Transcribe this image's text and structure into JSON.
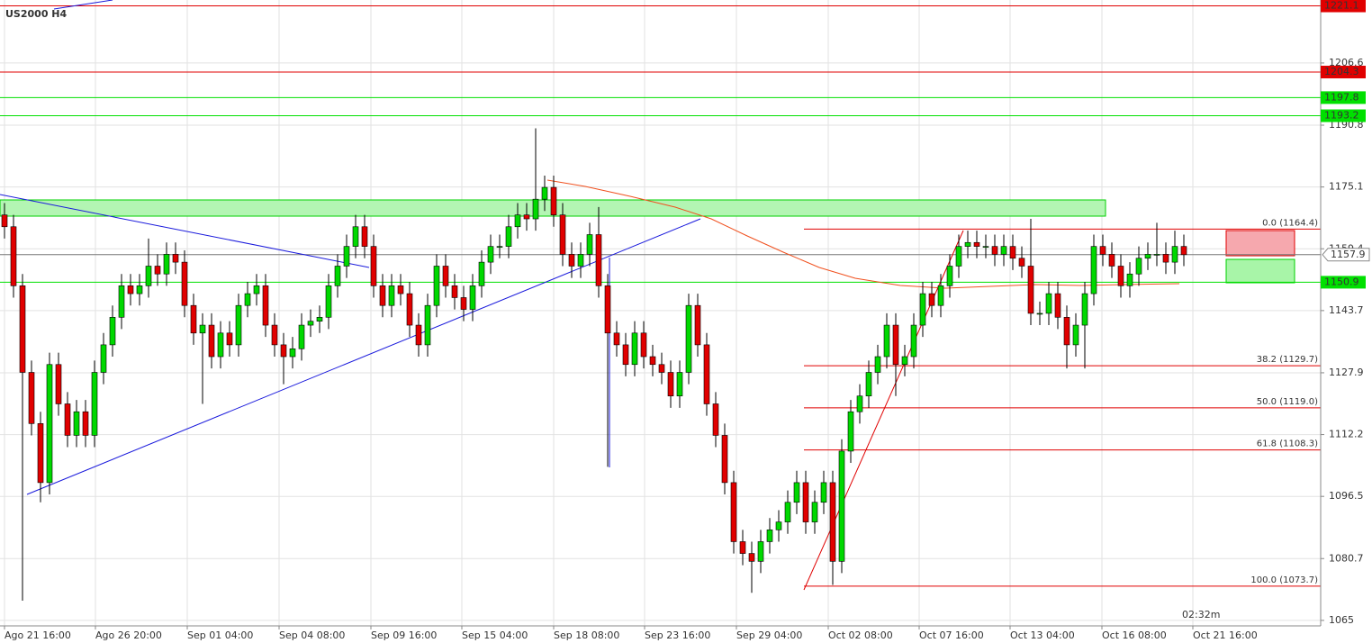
{
  "chart_data": {
    "type": "candlestick",
    "title": "US2000 H4",
    "timer": "02:32m",
    "xlim": [
      -0.5,
      146.2
    ],
    "xticks": [
      {
        "value": 0,
        "label": "Ago 21 16:00"
      },
      {
        "value": 10.1,
        "label": "Ago 26 20:00"
      },
      {
        "value": 20.3,
        "label": "Sep 01 04:00"
      },
      {
        "value": 30.5,
        "label": "Sep 04 08:00"
      },
      {
        "value": 40.7,
        "label": "Sep 09 16:00"
      },
      {
        "value": 50.8,
        "label": "Sep 15 04:00"
      },
      {
        "value": 61,
        "label": "Sep 18 08:00"
      },
      {
        "value": 71.1,
        "label": "Sep 23 16:00"
      },
      {
        "value": 81.3,
        "label": "Sep 29 04:00"
      },
      {
        "value": 91.5,
        "label": "Oct 02 08:00"
      },
      {
        "value": 101.6,
        "label": "Oct 07 16:00"
      },
      {
        "value": 111.7,
        "label": "Oct 13 04:00"
      },
      {
        "value": 121.9,
        "label": "Oct 16 08:00"
      },
      {
        "value": 132,
        "label": "Oct 21 16:00"
      }
    ],
    "ylim": [
      1063.6,
      1222.6
    ],
    "yticks": [
      1206.6,
      1190.8,
      1175.1,
      1159.4,
      1143.7,
      1127.9,
      1112.2,
      1096.5,
      1080.7,
      1065.0
    ],
    "grid": true,
    "up_color": "#00d800",
    "down_color": "#e00000",
    "open": [
      1168,
      1165,
      1150,
      1128,
      1115,
      1100,
      1130,
      1120,
      1112,
      1118,
      1112,
      1128,
      1135,
      1142,
      1150,
      1148,
      1150,
      1155,
      1153,
      1158,
      1156,
      1145,
      1138,
      1140,
      1132,
      1138,
      1135,
      1145,
      1148,
      1150,
      1140,
      1135,
      1132,
      1134,
      1140,
      1141,
      1142,
      1150,
      1155,
      1160,
      1165,
      1160,
      1150,
      1145,
      1150,
      1148,
      1140,
      1135,
      1145,
      1155,
      1150,
      1147,
      1144,
      1150,
      1156,
      1160,
      1160,
      1165,
      1168,
      1167,
      1172,
      1175,
      1168,
      1158,
      1155,
      1158,
      1163,
      1150,
      1138,
      1135,
      1130,
      1138,
      1132,
      1130,
      1128,
      1122,
      1128,
      1145,
      1135,
      1120,
      1112,
      1100,
      1085,
      1082,
      1080,
      1085,
      1088,
      1090,
      1095,
      1100,
      1090,
      1095,
      1100,
      1080,
      1108,
      1118,
      1122,
      1128,
      1132,
      1140,
      1130,
      1132,
      1140,
      1148,
      1145,
      1150,
      1155,
      1160,
      1161,
      1160,
      1160,
      1158,
      1160,
      1157,
      1155,
      1143,
      1143,
      1148,
      1142,
      1135,
      1140,
      1148,
      1160,
      1158,
      1155,
      1150,
      1153,
      1157,
      1158,
      1158,
      1156,
      1160
    ],
    "high": [
      1171,
      1168,
      1153,
      1131,
      1118,
      1133,
      1133,
      1123,
      1121,
      1121,
      1131,
      1138,
      1145,
      1153,
      1153,
      1153,
      1162,
      1158,
      1161,
      1161,
      1159,
      1148,
      1143,
      1143,
      1141,
      1141,
      1148,
      1151,
      1153,
      1153,
      1143,
      1138,
      1137,
      1143,
      1144,
      1145,
      1153,
      1158,
      1163,
      1168,
      1168,
      1163,
      1153,
      1153,
      1153,
      1151,
      1143,
      1148,
      1158,
      1158,
      1153,
      1150,
      1153,
      1159,
      1163,
      1163,
      1168,
      1171,
      1171,
      1190,
      1178,
      1178,
      1171,
      1161,
      1161,
      1166,
      1170,
      1153,
      1141,
      1138,
      1141,
      1141,
      1135,
      1133,
      1131,
      1131,
      1148,
      1148,
      1138,
      1123,
      1115,
      1103,
      1088,
      1085,
      1088,
      1091,
      1093,
      1098,
      1103,
      1103,
      1098,
      1103,
      1103,
      1111,
      1121,
      1125,
      1131,
      1135,
      1143,
      1143,
      1135,
      1143,
      1151,
      1151,
      1153,
      1158,
      1163,
      1164,
      1164,
      1163,
      1163,
      1163,
      1163,
      1160,
      1167,
      1146,
      1151,
      1151,
      1145,
      1143,
      1151,
      1163,
      1163,
      1161,
      1158,
      1156,
      1160,
      1161,
      1166,
      1161,
      1164,
      1163
    ],
    "low": [
      1162,
      1147,
      1070,
      1112,
      1095,
      1097,
      1117,
      1109,
      1109,
      1109,
      1109,
      1125,
      1132,
      1139,
      1145,
      1145,
      1147,
      1150,
      1150,
      1153,
      1142,
      1135,
      1120,
      1129,
      1129,
      1132,
      1132,
      1142,
      1145,
      1137,
      1132,
      1125,
      1129,
      1131,
      1137,
      1138,
      1139,
      1147,
      1152,
      1157,
      1157,
      1147,
      1142,
      1142,
      1145,
      1137,
      1132,
      1132,
      1142,
      1147,
      1144,
      1141,
      1141,
      1147,
      1153,
      1157,
      1157,
      1162,
      1164,
      1164,
      1169,
      1165,
      1155,
      1152,
      1152,
      1155,
      1147,
      1104,
      1132,
      1127,
      1127,
      1129,
      1127,
      1125,
      1119,
      1119,
      1125,
      1132,
      1117,
      1109,
      1097,
      1082,
      1079,
      1072,
      1077,
      1082,
      1085,
      1087,
      1092,
      1087,
      1087,
      1092,
      1074,
      1077,
      1105,
      1115,
      1119,
      1125,
      1129,
      1122,
      1127,
      1129,
      1137,
      1142,
      1142,
      1147,
      1152,
      1157,
      1157,
      1157,
      1155,
      1155,
      1154,
      1152,
      1140,
      1140,
      1140,
      1139,
      1129,
      1132,
      1129,
      1145,
      1155,
      1152,
      1147,
      1147,
      1150,
      1154,
      1155,
      1153,
      1153,
      1155
    ],
    "close": [
      1165,
      1150,
      1128,
      1115,
      1100,
      1130,
      1120,
      1112,
      1118,
      1112,
      1128,
      1135,
      1142,
      1150,
      1148,
      1150,
      1155,
      1153,
      1158,
      1156,
      1145,
      1138,
      1140,
      1132,
      1138,
      1135,
      1145,
      1148,
      1150,
      1140,
      1135,
      1132,
      1134,
      1140,
      1141,
      1142,
      1150,
      1155,
      1160,
      1165,
      1160,
      1150,
      1145,
      1150,
      1148,
      1140,
      1135,
      1145,
      1155,
      1150,
      1147,
      1144,
      1150,
      1156,
      1160,
      1160,
      1165,
      1168,
      1167,
      1172,
      1175,
      1168,
      1158,
      1155,
      1158,
      1163,
      1150,
      1138,
      1135,
      1130,
      1138,
      1132,
      1130,
      1128,
      1122,
      1128,
      1145,
      1135,
      1120,
      1112,
      1100,
      1085,
      1082,
      1080,
      1085,
      1088,
      1090,
      1095,
      1100,
      1090,
      1095,
      1100,
      1080,
      1108,
      1118,
      1122,
      1128,
      1132,
      1140,
      1130,
      1132,
      1140,
      1148,
      1145,
      1150,
      1155,
      1160,
      1161,
      1160,
      1160,
      1158,
      1160,
      1157,
      1155,
      1143,
      1143,
      1148,
      1142,
      1135,
      1140,
      1148,
      1160,
      1158,
      1155,
      1150,
      1153,
      1157,
      1158,
      1158,
      1156,
      1160,
      1157.9
    ],
    "current_price": 1157.9,
    "levels": [
      {
        "value": 1221.1,
        "color": "#e00000"
      },
      {
        "value": 1204.3,
        "color": "#e00000"
      },
      {
        "value": 1197.8,
        "color": "#00e000"
      },
      {
        "value": 1193.2,
        "color": "#00e000"
      },
      {
        "value": 1150.9,
        "color": "#00e000"
      }
    ],
    "fib_levels": [
      {
        "value": 1164.4,
        "label": "0.0 (1164.4)"
      },
      {
        "value": 1129.7,
        "label": "38.2 (1129.7)"
      },
      {
        "value": 1119.0,
        "label": "50.0 (1119.0)"
      },
      {
        "value": 1108.3,
        "label": "61.8 (1108.3)"
      },
      {
        "value": 1073.7,
        "label": "100.0 (1073.7)"
      }
    ]
  }
}
